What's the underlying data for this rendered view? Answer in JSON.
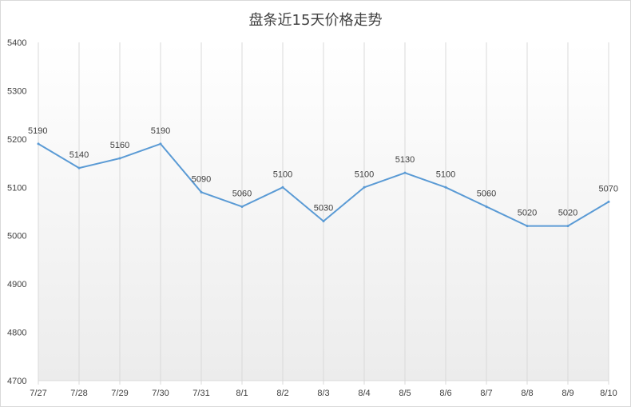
{
  "chart_data": {
    "type": "line",
    "title": "盘条近15天价格走势",
    "xlabel": "",
    "ylabel": "",
    "categories": [
      "7/27",
      "7/28",
      "7/29",
      "7/30",
      "7/31",
      "8/1",
      "8/2",
      "8/3",
      "8/4",
      "8/5",
      "8/6",
      "8/7",
      "8/8",
      "8/9",
      "8/10"
    ],
    "series": [
      {
        "values": [
          5190,
          5140,
          5160,
          5190,
          5090,
          5060,
          5100,
          5030,
          5100,
          5130,
          5100,
          5060,
          5020,
          5020,
          5070
        ]
      }
    ],
    "ylim": [
      4700,
      5400
    ],
    "yticks": [
      4700,
      4800,
      4900,
      5000,
      5100,
      5200,
      5300,
      5400
    ],
    "data_labels": true,
    "vertical_gridlines": true,
    "legend": "none",
    "colors": {
      "line": "#5b9bd5",
      "grid": "#d9d9d9",
      "text": "#404040"
    }
  }
}
